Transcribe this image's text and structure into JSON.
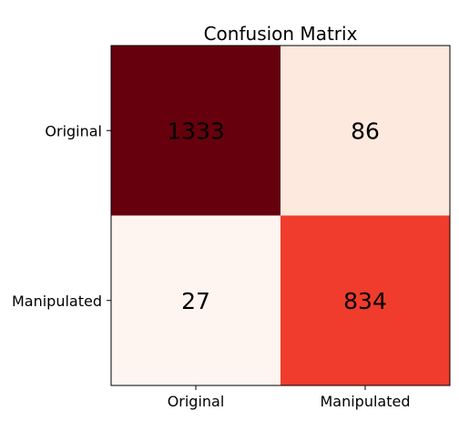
{
  "chart_data": {
    "type": "heatmap",
    "title": "Confusion Matrix",
    "xlabel": "",
    "ylabel": "",
    "x_categories": [
      "Original",
      "Manipulated"
    ],
    "y_categories": [
      "Original",
      "Manipulated"
    ],
    "values": [
      [
        1333,
        86
      ],
      [
        27,
        834
      ]
    ],
    "colormap": "Reds",
    "cell_colors": [
      [
        "#67000d",
        "#fee9df"
      ],
      [
        "#fff5f0",
        "#ef3c2c"
      ]
    ],
    "grid": false,
    "legend": "none"
  }
}
